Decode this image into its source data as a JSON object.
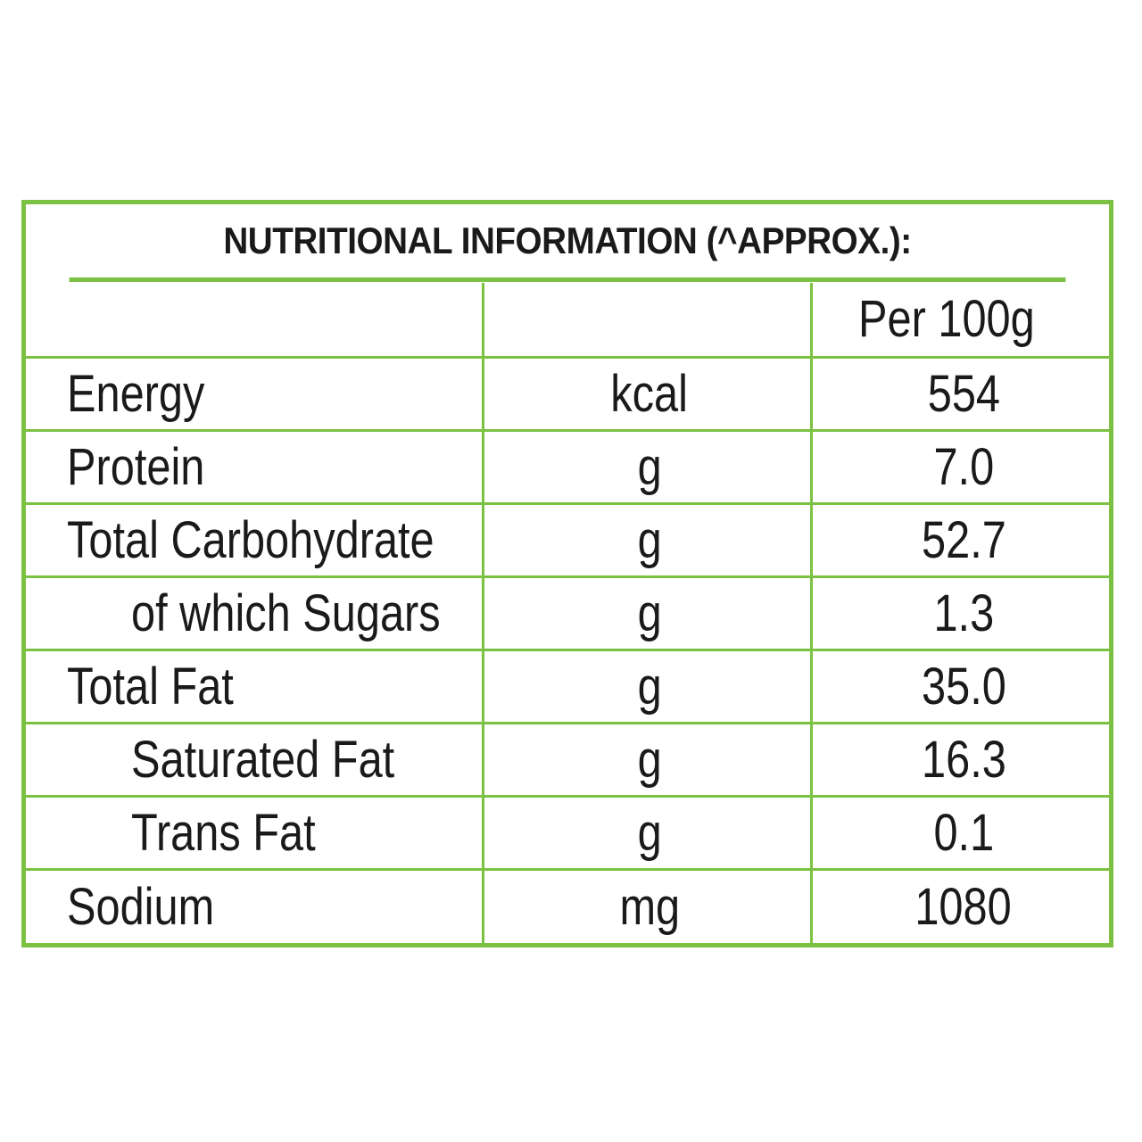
{
  "title": "NUTRITIONAL INFORMATION (^APPROX.):",
  "column_header": "Per 100g",
  "rows": [
    {
      "name": "Energy",
      "unit": "kcal",
      "value": "554"
    },
    {
      "name": "Protein",
      "unit": "g",
      "value": "7.0"
    },
    {
      "name": "Total Carbohydrate",
      "unit": "g",
      "value": "52.7"
    },
    {
      "name": "of which Sugars",
      "unit": "g",
      "value": "1.3"
    },
    {
      "name": "Total Fat",
      "unit": "g",
      "value": "35.0"
    },
    {
      "name": "Saturated Fat",
      "unit": "g",
      "value": "16.3"
    },
    {
      "name": "Trans Fat",
      "unit": "g",
      "value": "0.1"
    },
    {
      "name": "Sodium",
      "unit": "mg",
      "value": "1080"
    }
  ],
  "colors": {
    "border": "#7cc242",
    "text": "#1a1a1a",
    "background": "#ffffff"
  }
}
